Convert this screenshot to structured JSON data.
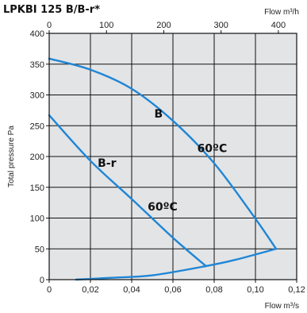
{
  "chart_data": {
    "type": "line",
    "title": "LPKBI 125 B/B-r*",
    "xlabel": "Flow m³/s",
    "x2label": "Flow m³/h",
    "ylabel": "Total pressure Pa",
    "xlim": [
      0,
      0.12
    ],
    "ylim": [
      0,
      400
    ],
    "x2lim": [
      0,
      432
    ],
    "x_ticks": [
      "0",
      "0,02",
      "0,04",
      "0,06",
      "0,08",
      "0,10",
      "0,12"
    ],
    "x2_ticks": [
      "0",
      "100",
      "200",
      "300",
      "400"
    ],
    "y_ticks": [
      "0",
      "50",
      "100",
      "150",
      "200",
      "250",
      "300",
      "350",
      "400"
    ],
    "grid": true,
    "line_color": "#1f86d6",
    "plot_background": "#e3e4e6",
    "series": [
      {
        "name": "B",
        "x": [
          0,
          0.02,
          0.04,
          0.06,
          0.08,
          0.1,
          0.11
        ],
        "y": [
          359,
          341,
          310,
          258,
          189,
          99,
          50
        ]
      },
      {
        "name": "B-r",
        "x": [
          0,
          0.02,
          0.04,
          0.06,
          0.076
        ],
        "y": [
          267,
          193,
          131,
          68,
          22
        ]
      },
      {
        "name": "",
        "x": [
          0.013,
          0.03,
          0.05,
          0.076,
          0.09,
          0.11
        ],
        "y": [
          0,
          3,
          7,
          22,
          32,
          50
        ]
      }
    ],
    "annotations": [
      {
        "text": "B",
        "x": 0.053,
        "y": 263
      },
      {
        "text": "60ºC",
        "x": 0.079,
        "y": 207
      },
      {
        "text": "B-r",
        "x": 0.028,
        "y": 183
      },
      {
        "text": "60ºC",
        "x": 0.055,
        "y": 112
      }
    ]
  }
}
